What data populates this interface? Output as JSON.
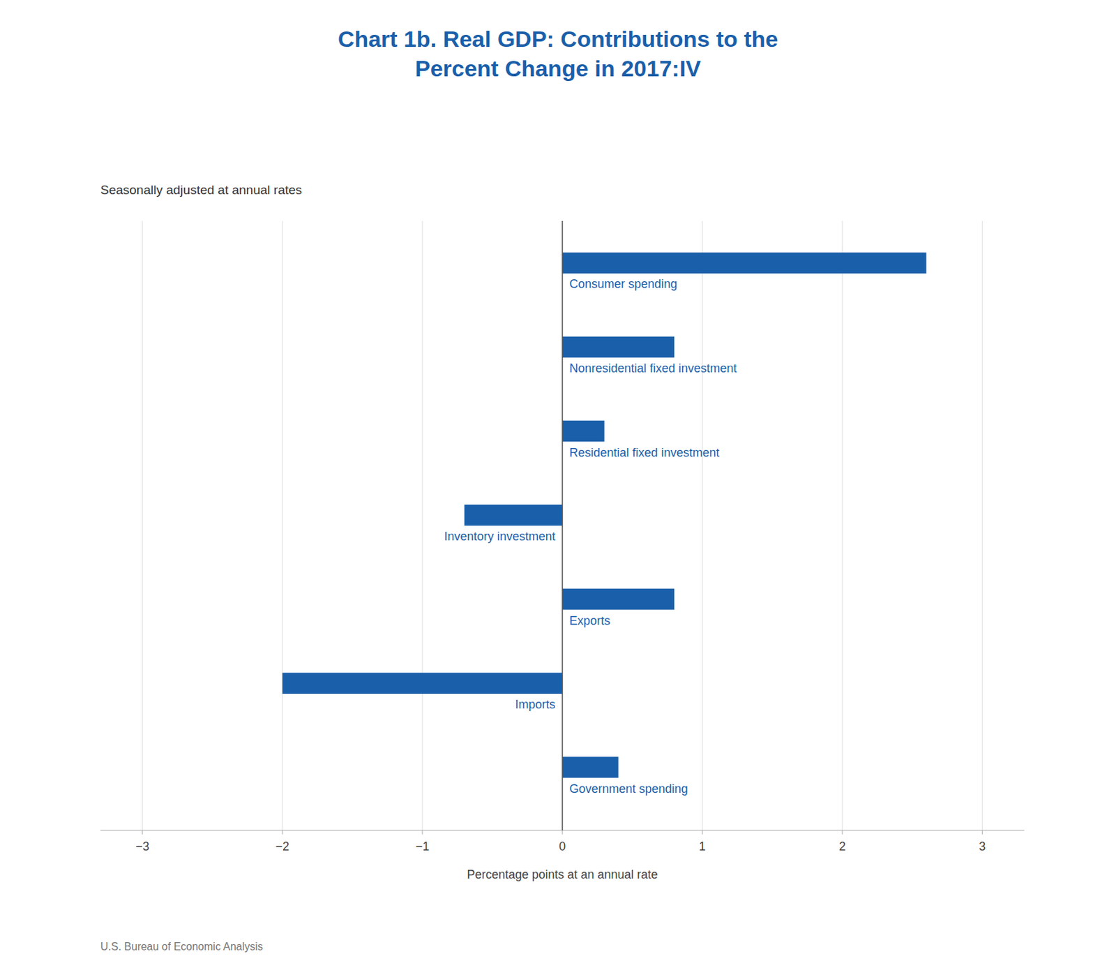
{
  "chart_data": {
    "type": "bar",
    "orientation": "horizontal",
    "title": "Chart 1b. Real GDP: Contributions to the\nPercent Change in 2017:IV",
    "subtitle": "Seasonally adjusted at annual rates",
    "x_label": "Percentage points at an annual rate",
    "annotations": [
      "U.S. Bureau of Economic Analysis"
    ],
    "categories": [
      "Government spending",
      "Imports",
      "Exports",
      "Inventory investment",
      "Residential fixed investment",
      "Nonresidential fixed investment",
      "Consumer spending"
    ],
    "values": [
      0.4,
      -2.0,
      0.8,
      -0.7,
      0.3,
      0.8,
      2.6
    ],
    "color": "#1a5faa",
    "xlim": [
      -3.3,
      3.3
    ],
    "xticks": [
      {
        "value": -3,
        "label": "−3"
      },
      {
        "value": -2,
        "label": "−2"
      },
      {
        "value": -1,
        "label": "−1"
      },
      0,
      1,
      2,
      3
    ],
    "grid": true
  }
}
